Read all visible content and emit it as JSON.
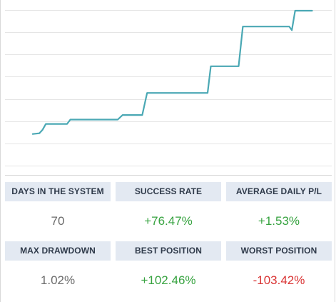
{
  "chart": {
    "line_color": "#4aa8b4",
    "grid_color": "#e5e5e5",
    "grid_lines": 8,
    "points": [
      [
        0.085,
        0.14
      ],
      [
        0.105,
        0.145
      ],
      [
        0.115,
        0.17
      ],
      [
        0.125,
        0.21
      ],
      [
        0.19,
        0.21
      ],
      [
        0.2,
        0.24
      ],
      [
        0.345,
        0.24
      ],
      [
        0.36,
        0.272
      ],
      [
        0.42,
        0.272
      ],
      [
        0.435,
        0.425
      ],
      [
        0.62,
        0.425
      ],
      [
        0.63,
        0.61
      ],
      [
        0.715,
        0.61
      ],
      [
        0.728,
        0.885
      ],
      [
        0.87,
        0.885
      ],
      [
        0.878,
        0.86
      ],
      [
        0.888,
        0.995
      ],
      [
        0.94,
        0.995
      ]
    ]
  },
  "stats": {
    "row1": [
      {
        "label": "DAYS IN THE SYSTEM",
        "value": "70",
        "tone": "neutral"
      },
      {
        "label": "SUCCESS RATE",
        "value": "+76.47%",
        "tone": "positive"
      },
      {
        "label": "AVERAGE DAILY P/L",
        "value": "+1.53%",
        "tone": "positive"
      }
    ],
    "row2": [
      {
        "label": "MAX DRAWDOWN",
        "value": "1.02%",
        "tone": "neutral"
      },
      {
        "label": "BEST POSITION",
        "value": "+102.46%",
        "tone": "positive"
      },
      {
        "label": "WORST POSITION",
        "value": "-103.42%",
        "tone": "negative"
      }
    ]
  },
  "colors": {
    "header_bg": "#e3e9f2",
    "header_text": "#2f3a4a",
    "positive": "#37a340",
    "negative": "#d93434",
    "neutral": "#6b6b6b"
  }
}
